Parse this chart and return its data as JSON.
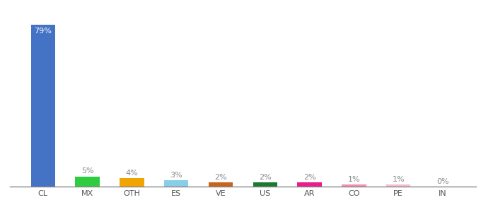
{
  "categories": [
    "CL",
    "MX",
    "OTH",
    "ES",
    "VE",
    "US",
    "AR",
    "CO",
    "PE",
    "IN"
  ],
  "values": [
    79,
    5,
    4,
    3,
    2,
    2,
    2,
    1,
    1,
    0
  ],
  "labels": [
    "79%",
    "5%",
    "4%",
    "3%",
    "2%",
    "2%",
    "2%",
    "1%",
    "1%",
    "0%"
  ],
  "bar_colors": [
    "#4472c4",
    "#2ecc40",
    "#f0a500",
    "#87ceeb",
    "#c8651b",
    "#1a7a30",
    "#e91e8c",
    "#f48fb1",
    "#f8bbd0",
    "#cccccc"
  ],
  "label_colors": [
    "#ffffff",
    "#888888",
    "#888888",
    "#888888",
    "#888888",
    "#888888",
    "#888888",
    "#888888",
    "#888888",
    "#888888"
  ],
  "label_inside": [
    true,
    false,
    false,
    false,
    false,
    false,
    false,
    false,
    false,
    false
  ],
  "background_color": "#ffffff",
  "ylim": [
    0,
    88
  ],
  "bar_width": 0.55,
  "label_fontsize": 8.0,
  "tick_fontsize": 8.0
}
